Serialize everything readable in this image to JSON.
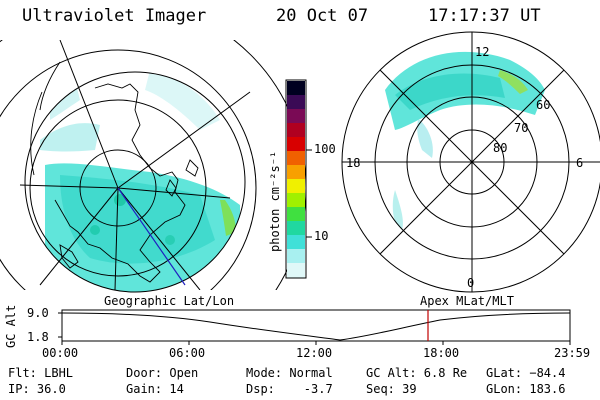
{
  "header": {
    "title": "Ultraviolet Imager",
    "date": "20 Oct 07",
    "time": "17:17:37 UT"
  },
  "colorbar": {
    "unit_label": "photon cm⁻²s⁻¹",
    "ticks": [
      "100",
      "10"
    ],
    "colors": [
      "#000020",
      "#3a0a55",
      "#7a0a55",
      "#b00020",
      "#d80000",
      "#f06000",
      "#f8a000",
      "#f0f000",
      "#a0f000",
      "#40e040",
      "#20d8a0",
      "#40e0d8",
      "#a8f0f0",
      "#e0f8f8"
    ]
  },
  "map_left": {
    "label": "Geographic Lat/Lon"
  },
  "map_right": {
    "label": "Apex MLat/MLT",
    "mlt_labels": {
      "top": "12",
      "left": "18",
      "right": "6",
      "bottom": "0"
    },
    "lat_labels": [
      "60",
      "70",
      "80"
    ]
  },
  "timeline": {
    "ylabel": "GC Alt",
    "y_ticks": [
      "9.0",
      "1.8"
    ],
    "x_ticks": [
      "00:00",
      "06:00",
      "12:00",
      "18:00",
      "23:59"
    ],
    "marker_color": "#c00000"
  },
  "info": {
    "flt": "Flt: LBHL",
    "ip": "IP: 36.0",
    "door": "Door: Open",
    "gain": "Gain: 14",
    "mode": "Mode: Normal",
    "dsp": "Dsp:    -3.7",
    "gcalt": "GC Alt: 6.8 Re",
    "seq": "Seq: 39",
    "glat": "GLat: −84.4",
    "glon": "GLon: 183.6"
  }
}
